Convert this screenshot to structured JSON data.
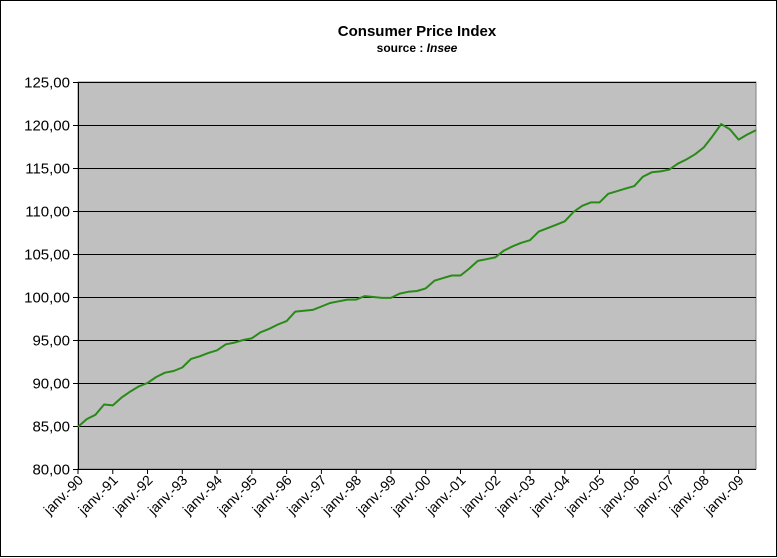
{
  "chart_data": {
    "type": "line",
    "title": "Consumer Price Index",
    "subtitle_prefix": "source : ",
    "subtitle_source": "Insee",
    "xlabel": "",
    "ylabel": "",
    "ylim": [
      80,
      125
    ],
    "y_ticks": [
      "80,00",
      "85,00",
      "90,00",
      "95,00",
      "100,00",
      "105,00",
      "110,00",
      "115,00",
      "120,00",
      "125,00"
    ],
    "y_tick_values": [
      80,
      85,
      90,
      95,
      100,
      105,
      110,
      115,
      120,
      125
    ],
    "x_ticks": [
      "janv.-90",
      "janv.-91",
      "janv.-92",
      "janv.-93",
      "janv.-94",
      "janv.-95",
      "janv.-96",
      "janv.-97",
      "janv.-98",
      "janv.-99",
      "janv.-00",
      "janv.-01",
      "janv.-02",
      "janv.-03",
      "janv.-04",
      "janv.-05",
      "janv.-06",
      "janv.-07",
      "janv.-08",
      "janv.-09"
    ],
    "x_tick_dates": [
      "1990-01",
      "1991-01",
      "1992-01",
      "1993-01",
      "1994-01",
      "1995-01",
      "1996-01",
      "1997-01",
      "1998-01",
      "1999-01",
      "2000-01",
      "2001-01",
      "2002-01",
      "2003-01",
      "2004-01",
      "2005-01",
      "2006-01",
      "2007-01",
      "2008-01",
      "2009-01"
    ],
    "x_range": [
      "1990-01",
      "2009-07"
    ],
    "grid": true,
    "legend": "none",
    "colors": {
      "line": "#2a8a18",
      "plot_bg": "#c0c0c0",
      "grid": "#000000"
    },
    "series": [
      {
        "x": [
          "1990-01",
          "1990-04",
          "1990-07",
          "1990-10",
          "1991-01",
          "1991-04",
          "1991-07",
          "1991-10",
          "1992-01",
          "1992-04",
          "1992-07",
          "1992-10",
          "1993-01",
          "1993-04",
          "1993-07",
          "1993-10",
          "1994-01",
          "1994-04",
          "1994-07",
          "1994-10",
          "1995-01",
          "1995-04",
          "1995-07",
          "1995-10",
          "1996-01",
          "1996-04",
          "1996-07",
          "1996-10",
          "1997-01",
          "1997-04",
          "1997-07",
          "1997-10",
          "1998-01",
          "1998-04",
          "1998-07",
          "1998-10",
          "1999-01",
          "1999-04",
          "1999-07",
          "1999-10",
          "2000-01",
          "2000-04",
          "2000-07",
          "2000-10",
          "2001-01",
          "2001-04",
          "2001-07",
          "2001-10",
          "2002-01",
          "2002-04",
          "2002-07",
          "2002-10",
          "2003-01",
          "2003-04",
          "2003-07",
          "2003-10",
          "2004-01",
          "2004-04",
          "2004-07",
          "2004-10",
          "2005-01",
          "2005-04",
          "2005-07",
          "2005-10",
          "2006-01",
          "2006-04",
          "2006-07",
          "2006-10",
          "2007-01",
          "2007-04",
          "2007-07",
          "2007-10",
          "2008-01",
          "2008-04",
          "2008-07",
          "2008-10",
          "2009-01",
          "2009-04",
          "2009-07"
        ],
        "values": [
          84.9,
          85.8,
          86.3,
          87.5,
          87.4,
          88.3,
          89.0,
          89.6,
          90.0,
          90.7,
          91.2,
          91.4,
          91.8,
          92.8,
          93.1,
          93.5,
          93.8,
          94.5,
          94.7,
          95.0,
          95.2,
          95.9,
          96.3,
          96.8,
          97.2,
          98.3,
          98.4,
          98.5,
          98.9,
          99.3,
          99.5,
          99.7,
          99.7,
          100.1,
          100.0,
          99.9,
          99.9,
          100.4,
          100.6,
          100.7,
          101.0,
          101.9,
          102.2,
          102.5,
          102.5,
          103.3,
          104.2,
          104.4,
          104.6,
          105.4,
          105.9,
          106.3,
          106.6,
          107.6,
          108.0,
          108.4,
          108.8,
          109.9,
          110.6,
          111.0,
          111.0,
          112.0,
          112.3,
          112.6,
          112.9,
          114.0,
          114.5,
          114.6,
          114.8,
          115.5,
          116.0,
          116.6,
          117.4,
          118.7,
          120.1,
          119.5,
          118.3,
          118.9,
          119.4
        ]
      }
    ]
  }
}
